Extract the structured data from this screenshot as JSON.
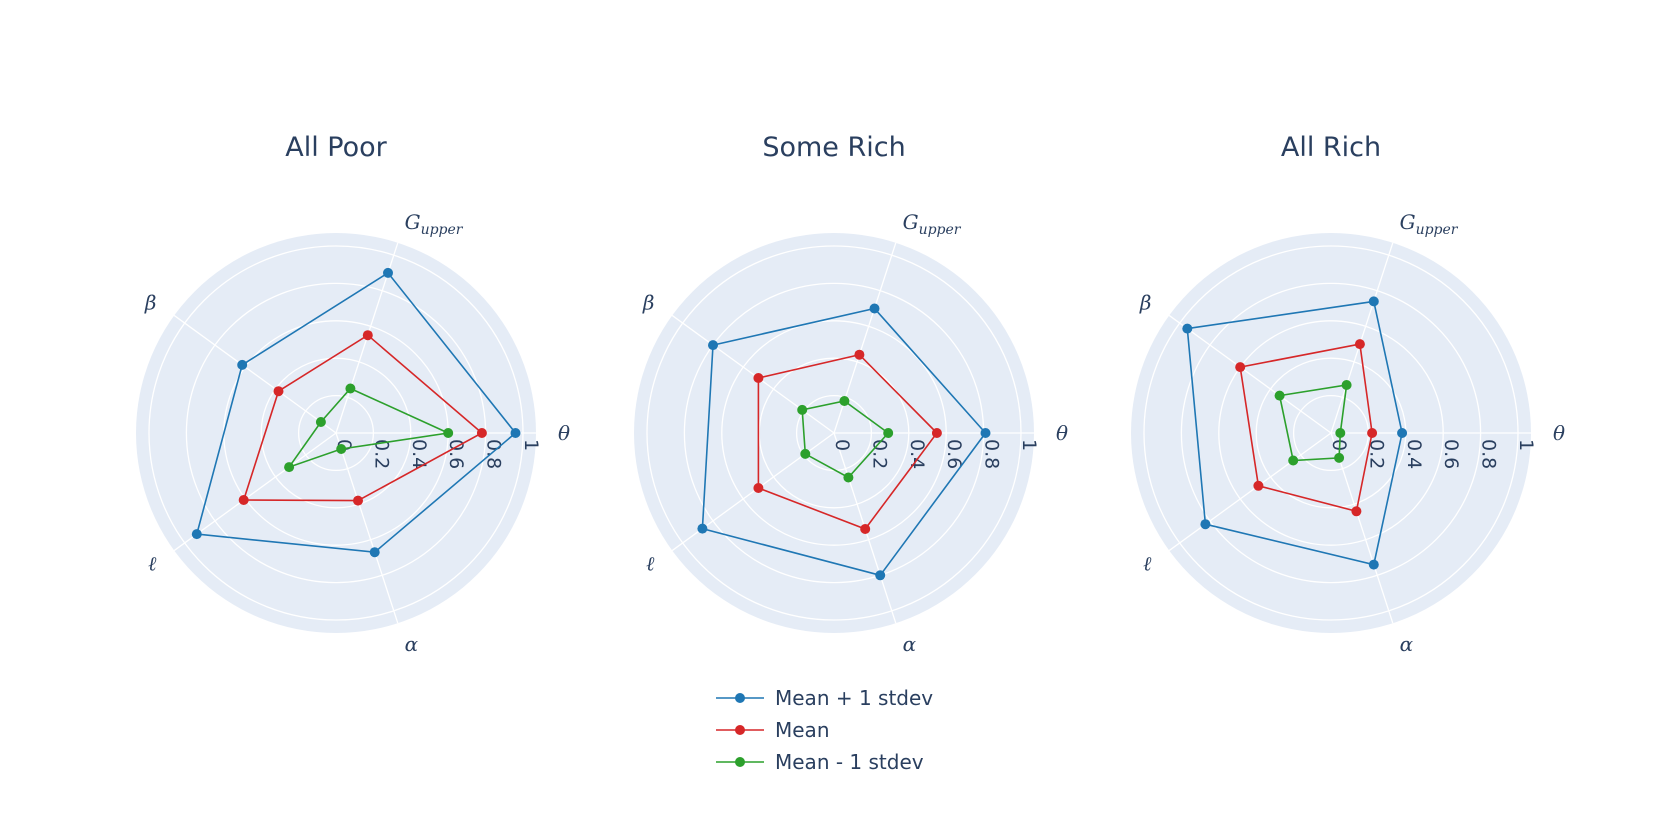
{
  "chart_data": {
    "type": "radar",
    "axes": [
      {
        "main": "θ",
        "sub": ""
      },
      {
        "main": "G",
        "sub": "upper"
      },
      {
        "main": "β",
        "sub": ""
      },
      {
        "main": "ℓ",
        "sub": ""
      },
      {
        "main": "α",
        "sub": ""
      }
    ],
    "legend": {
      "position": "bottom-center"
    },
    "series_styles": [
      {
        "name": "Mean + 1 stdev",
        "color": "#1f77b4"
      },
      {
        "name": "Mean",
        "color": "#d62728"
      },
      {
        "name": "Mean - 1 stdev",
        "color": "#2ca02c"
      }
    ],
    "grid_color": "#ffffff",
    "background_color": "#e5ecf6",
    "charts": [
      {
        "title": "All Poor",
        "rlim": [
          0,
          1
        ],
        "tick_labels": [
          "0",
          "0.2",
          "0.4",
          "0.6",
          "0.8",
          "1"
        ],
        "series": [
          {
            "name": "Mean + 1 stdev",
            "values": [
              0.96,
              0.9,
              0.62,
              0.92,
              0.67
            ]
          },
          {
            "name": "Mean",
            "values": [
              0.78,
              0.55,
              0.38,
              0.61,
              0.38
            ]
          },
          {
            "name": "Mean - 1 stdev",
            "values": [
              0.6,
              0.25,
              0.1,
              0.31,
              0.09
            ]
          }
        ]
      },
      {
        "title": "Some Rich",
        "rlim": [
          0,
          1
        ],
        "tick_labels": [
          "0",
          "0.2",
          "0.4",
          "0.6",
          "0.8",
          "1"
        ],
        "series": [
          {
            "name": "Mean + 1 stdev",
            "values": [
              0.81,
              0.7,
              0.8,
              0.87,
              0.8
            ]
          },
          {
            "name": "Mean",
            "values": [
              0.55,
              0.44,
              0.5,
              0.5,
              0.54
            ]
          },
          {
            "name": "Mean - 1 stdev",
            "values": [
              0.29,
              0.18,
              0.21,
              0.19,
              0.25
            ]
          }
        ]
      },
      {
        "title": "All Rich",
        "rlim": [
          0,
          1
        ],
        "tick_labels": [
          "0",
          "0.2",
          "0.4",
          "0.6",
          "0.8",
          "1"
        ],
        "series": [
          {
            "name": "Mean + 1 stdev",
            "values": [
              0.38,
              0.74,
              0.95,
              0.83,
              0.74
            ]
          },
          {
            "name": "Mean",
            "values": [
              0.22,
              0.5,
              0.6,
              0.48,
              0.44
            ]
          },
          {
            "name": "Mean - 1 stdev",
            "values": [
              0.05,
              0.27,
              0.34,
              0.25,
              0.14
            ]
          }
        ]
      }
    ]
  }
}
